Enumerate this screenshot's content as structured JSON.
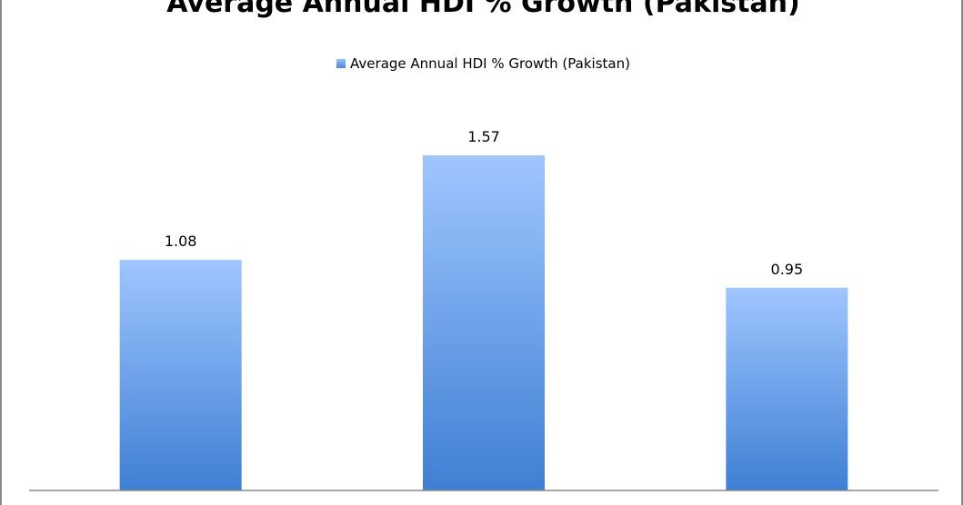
{
  "chart_data": {
    "type": "bar",
    "title": "Average Annual HDI % Growth (Pakistan)",
    "xlabel": "",
    "ylabel": "",
    "categories": [
      "",
      "",
      ""
    ],
    "series": [
      {
        "name": "Average Annual HDI % Growth (Pakistan)",
        "values": [
          1.08,
          1.57,
          0.95
        ]
      }
    ],
    "data_labels": [
      "1.08",
      "1.57",
      "0.95"
    ],
    "ylim": [
      0,
      1.8
    ],
    "legend_position": "top-center",
    "grid": false,
    "colors": {
      "bar_top": "#9fc6ff",
      "bar_bottom": "#3f7fd3"
    }
  }
}
